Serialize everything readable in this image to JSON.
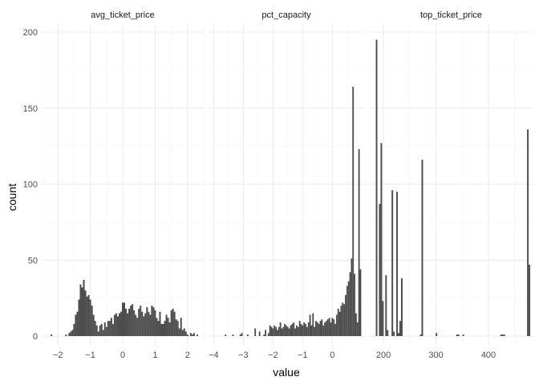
{
  "chart_data": {
    "type": "histogram",
    "facet_layout": "3 columns, free x scales, shared y",
    "xlabel": "value",
    "ylabel": "count",
    "ylim": [
      -10,
      210
    ],
    "y_ticks": [
      0,
      50,
      100,
      150,
      200
    ],
    "grid": true,
    "bar_color": "#4d4d4d",
    "panels": [
      {
        "title": "avg_ticket_price",
        "xlim": [
          -2.5,
          2.5
        ],
        "x_ticks": [
          -2,
          -1,
          0,
          1,
          2
        ],
        "bin_width": 0.05,
        "bins": [
          [
            -2.2,
            1
          ],
          [
            -1.75,
            1
          ],
          [
            -1.65,
            2
          ],
          [
            -1.6,
            3
          ],
          [
            -1.55,
            4
          ],
          [
            -1.5,
            8
          ],
          [
            -1.45,
            14
          ],
          [
            -1.4,
            16
          ],
          [
            -1.35,
            24
          ],
          [
            -1.3,
            34
          ],
          [
            -1.25,
            32
          ],
          [
            -1.2,
            37
          ],
          [
            -1.15,
            30
          ],
          [
            -1.1,
            26
          ],
          [
            -1.05,
            27
          ],
          [
            -1.0,
            24
          ],
          [
            -0.95,
            20
          ],
          [
            -0.9,
            14
          ],
          [
            -0.85,
            10
          ],
          [
            -0.8,
            7
          ],
          [
            -0.75,
            3
          ],
          [
            -0.7,
            7
          ],
          [
            -0.65,
            8
          ],
          [
            -0.6,
            4
          ],
          [
            -0.55,
            9
          ],
          [
            -0.5,
            6
          ],
          [
            -0.45,
            10
          ],
          [
            -0.4,
            10
          ],
          [
            -0.35,
            12
          ],
          [
            -0.3,
            8
          ],
          [
            -0.25,
            14
          ],
          [
            -0.2,
            15
          ],
          [
            -0.15,
            13
          ],
          [
            -0.1,
            15
          ],
          [
            -0.05,
            16
          ],
          [
            0.0,
            22
          ],
          [
            0.05,
            22
          ],
          [
            0.1,
            18
          ],
          [
            0.15,
            15
          ],
          [
            0.2,
            18
          ],
          [
            0.25,
            20
          ],
          [
            0.3,
            21
          ],
          [
            0.35,
            17
          ],
          [
            0.4,
            14
          ],
          [
            0.45,
            12
          ],
          [
            0.5,
            18
          ],
          [
            0.55,
            20
          ],
          [
            0.6,
            16
          ],
          [
            0.65,
            13
          ],
          [
            0.7,
            15
          ],
          [
            0.75,
            19
          ],
          [
            0.8,
            16
          ],
          [
            0.85,
            14
          ],
          [
            0.9,
            20
          ],
          [
            0.95,
            19
          ],
          [
            1.0,
            17
          ],
          [
            1.05,
            12
          ],
          [
            1.1,
            10
          ],
          [
            1.15,
            16
          ],
          [
            1.2,
            8
          ],
          [
            1.25,
            8
          ],
          [
            1.3,
            10
          ],
          [
            1.35,
            14
          ],
          [
            1.4,
            12
          ],
          [
            1.45,
            9
          ],
          [
            1.5,
            17
          ],
          [
            1.55,
            18
          ],
          [
            1.6,
            16
          ],
          [
            1.65,
            11
          ],
          [
            1.7,
            10
          ],
          [
            1.75,
            5
          ],
          [
            1.8,
            12
          ],
          [
            1.85,
            4
          ],
          [
            1.9,
            5
          ],
          [
            1.95,
            3
          ],
          [
            2.0,
            1
          ],
          [
            2.1,
            2
          ],
          [
            2.15,
            1
          ],
          [
            2.2,
            2
          ],
          [
            2.3,
            1
          ]
        ]
      },
      {
        "title": "pct_capacity",
        "xlim": [
          -4.2,
          1.1
        ],
        "x_ticks": [
          -4,
          -3,
          -2,
          -1,
          0
        ],
        "bin_width": 0.05,
        "bins": [
          [
            -3.6,
            1
          ],
          [
            -3.35,
            1
          ],
          [
            -3.1,
            1
          ],
          [
            -3.05,
            2
          ],
          [
            -2.85,
            1
          ],
          [
            -2.6,
            5
          ],
          [
            -2.45,
            3
          ],
          [
            -2.3,
            1
          ],
          [
            -2.25,
            4
          ],
          [
            -2.15,
            2
          ],
          [
            -2.1,
            7
          ],
          [
            -2.05,
            6
          ],
          [
            -2.0,
            5
          ],
          [
            -1.95,
            7
          ],
          [
            -1.9,
            6
          ],
          [
            -1.85,
            4
          ],
          [
            -1.8,
            6
          ],
          [
            -1.75,
            9
          ],
          [
            -1.7,
            5
          ],
          [
            -1.65,
            6
          ],
          [
            -1.6,
            8
          ],
          [
            -1.55,
            7
          ],
          [
            -1.5,
            6
          ],
          [
            -1.45,
            5
          ],
          [
            -1.4,
            7
          ],
          [
            -1.35,
            8
          ],
          [
            -1.3,
            9
          ],
          [
            -1.25,
            5
          ],
          [
            -1.2,
            7
          ],
          [
            -1.15,
            6
          ],
          [
            -1.1,
            10
          ],
          [
            -1.05,
            8
          ],
          [
            -1.0,
            7
          ],
          [
            -0.95,
            9
          ],
          [
            -0.9,
            8
          ],
          [
            -0.85,
            6
          ],
          [
            -0.8,
            9
          ],
          [
            -0.75,
            14
          ],
          [
            -0.7,
            7
          ],
          [
            -0.65,
            15
          ],
          [
            -0.6,
            6
          ],
          [
            -0.55,
            10
          ],
          [
            -0.5,
            9
          ],
          [
            -0.45,
            8
          ],
          [
            -0.4,
            10
          ],
          [
            -0.35,
            11
          ],
          [
            -0.3,
            7
          ],
          [
            -0.25,
            9
          ],
          [
            -0.2,
            10
          ],
          [
            -0.15,
            11
          ],
          [
            -0.1,
            12
          ],
          [
            -0.05,
            9
          ],
          [
            0.0,
            12
          ],
          [
            0.05,
            11
          ],
          [
            0.1,
            8
          ],
          [
            0.15,
            14
          ],
          [
            0.2,
            18
          ],
          [
            0.25,
            16
          ],
          [
            0.3,
            20
          ],
          [
            0.35,
            22
          ],
          [
            0.4,
            21
          ],
          [
            0.45,
            27
          ],
          [
            0.5,
            33
          ],
          [
            0.55,
            36
          ],
          [
            0.6,
            42
          ],
          [
            0.65,
            51
          ],
          [
            0.7,
            164
          ],
          [
            0.75,
            41
          ],
          [
            0.8,
            15
          ],
          [
            0.85,
            9
          ],
          [
            0.9,
            123
          ],
          [
            0.95,
            44
          ]
        ]
      },
      {
        "title": "top_ticket_price",
        "xlim": [
          174,
          484
        ],
        "x_ticks": [
          200,
          300,
          400
        ],
        "bin_width": 3,
        "bins": [
          [
            187,
            195
          ],
          [
            193,
            87
          ],
          [
            196,
            127
          ],
          [
            199,
            23
          ],
          [
            205,
            40
          ],
          [
            208,
            4
          ],
          [
            217,
            96
          ],
          [
            220,
            3
          ],
          [
            226,
            95
          ],
          [
            229,
            2
          ],
          [
            232,
            10
          ],
          [
            235,
            38
          ],
          [
            271,
            1
          ],
          [
            274,
            116
          ],
          [
            301,
            2
          ],
          [
            340,
            1
          ],
          [
            343,
            1
          ],
          [
            352,
            1
          ],
          [
            424,
            1
          ],
          [
            427,
            1
          ],
          [
            430,
            1
          ],
          [
            475,
            136
          ],
          [
            478,
            47
          ]
        ]
      }
    ]
  }
}
